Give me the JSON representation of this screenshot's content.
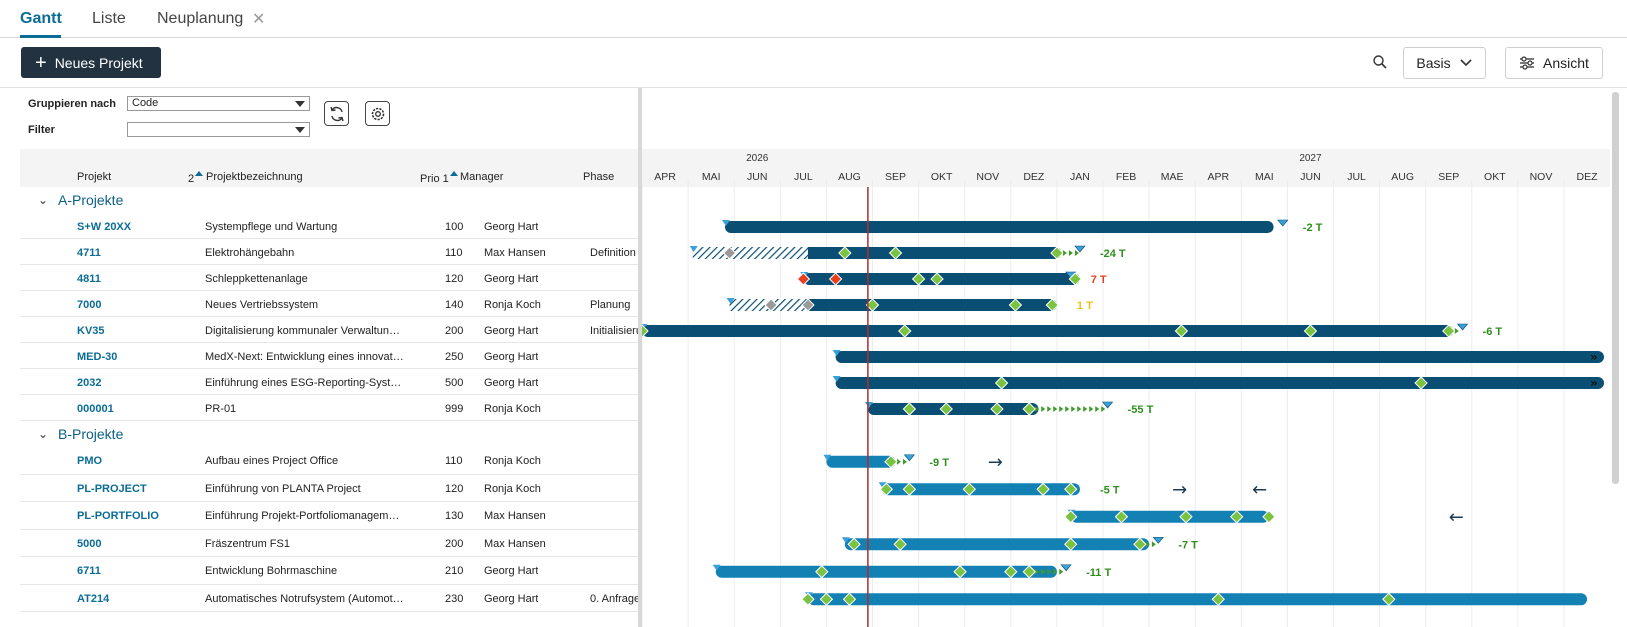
{
  "tabs": [
    {
      "label": "Gantt",
      "active": true
    },
    {
      "label": "Liste",
      "active": false
    },
    {
      "label": "Neuplanung",
      "active": false,
      "closable": true
    }
  ],
  "toolbar": {
    "new_project_label": "Neues Projekt",
    "basis_label": "Basis",
    "view_label": "Ansicht"
  },
  "filters": {
    "group_by_label": "Gruppieren nach",
    "group_by_value": "Code",
    "filter_label": "Filter",
    "filter_value": ""
  },
  "columns": {
    "project": "Projekt",
    "sort2": "2",
    "name": "Projektbezeichnung",
    "prio": "Prio 1",
    "manager": "Manager",
    "phase": "Phase"
  },
  "timeline": {
    "years": [
      "2026",
      "2027"
    ],
    "months": [
      "APR",
      "MAI",
      "JUN",
      "JUL",
      "AUG",
      "SEP",
      "OKT",
      "NOV",
      "DEZ",
      "JAN",
      "FEB",
      "MAE",
      "APR",
      "MAI",
      "JUN",
      "JUL",
      "AUG",
      "SEP",
      "OKT",
      "NOV",
      "DEZ"
    ],
    "today_month": 4.9
  },
  "colors": {
    "bar_a": "#0a4f73",
    "bar_b": "#1381b4",
    "milestone": "#79c341",
    "milestone_red": "#e6401f",
    "milestone_grey": "#9a9a9a",
    "today_line": "#b02c2c",
    "accent": "#0b6d96"
  },
  "groups": [
    {
      "name": "A-Projekte",
      "rows": [
        {
          "code": "S+W 20XX",
          "name": "Systempflege und Wartung",
          "prio": "100",
          "manager": "Georg Hart",
          "phase": "",
          "bar": [
            1.8,
            13.7
          ],
          "hatch": null,
          "milestones": [],
          "end_marker": 13.9,
          "label": "-2 T",
          "label_color": "#2f8f1d",
          "arrow": ""
        },
        {
          "code": "4711",
          "name": "Elektrohängebahn",
          "prio": "110",
          "manager": "Max Hansen",
          "phase": "Definition",
          "bar": [
            1.1,
            9.1
          ],
          "hatch": [
            1.1,
            3.6
          ],
          "milestones": [
            [
              1.9,
              "g"
            ],
            [
              4.4,
              "m"
            ],
            [
              5.5,
              "m"
            ],
            [
              9.0,
              "m"
            ]
          ],
          "end_marker": 9.5,
          "label": "-24 T",
          "label_color": "#2f8f1d",
          "arrow": ""
        },
        {
          "code": "4811",
          "name": "Schleppkettenanlage",
          "prio": "120",
          "manager": "Georg Hart",
          "phase": "",
          "bar": [
            3.5,
            9.5
          ],
          "hatch": null,
          "milestones": [
            [
              3.5,
              "r"
            ],
            [
              4.2,
              "r"
            ],
            [
              6.0,
              "m"
            ],
            [
              6.4,
              "m"
            ],
            [
              9.4,
              "m"
            ]
          ],
          "end_marker": 9.3,
          "label": "7 T",
          "label_color": "#e6401f",
          "arrow": ""
        },
        {
          "code": "7000",
          "name": "Neues Vertriebssystem",
          "prio": "140",
          "manager": "Ronja Koch",
          "phase": "Planung",
          "bar": [
            1.9,
            9.0
          ],
          "hatch": [
            1.9,
            3.6
          ],
          "milestones": [
            [
              2.8,
              "g"
            ],
            [
              3.6,
              "g"
            ],
            [
              5.0,
              "m"
            ],
            [
              8.1,
              "m"
            ],
            [
              8.9,
              "m"
            ]
          ],
          "end_marker": null,
          "label": "1 T",
          "label_color": "#e8c21c",
          "arrow": ""
        },
        {
          "code": "KV35",
          "name": "Digitalisierung kommunaler Verwaltun…",
          "prio": "200",
          "manager": "Georg Hart",
          "phase": "Initialisieru",
          "bar": [
            0.0,
            17.6
          ],
          "hatch": null,
          "milestones": [
            [
              0.0,
              "m"
            ],
            [
              5.7,
              "m"
            ],
            [
              11.7,
              "m"
            ],
            [
              14.5,
              "m"
            ],
            [
              17.5,
              "m"
            ]
          ],
          "end_marker": 17.8,
          "label": "-6 T",
          "label_color": "#2f8f1d",
          "arrow": ""
        },
        {
          "code": "MED-30",
          "name": "MedX-Next: Entwicklung eines innovat…",
          "prio": "250",
          "manager": "Georg Hart",
          "phase": "",
          "bar": [
            4.2,
            21.0
          ],
          "hatch": null,
          "milestones": [],
          "end_marker": null,
          "label": "",
          "label_color": "#2f8f1d",
          "arrow": "",
          "overflow": true
        },
        {
          "code": "2032",
          "name": "Einführung eines ESG-Reporting-Syste…",
          "prio": "500",
          "manager": "Georg Hart",
          "phase": "",
          "bar": [
            4.2,
            21.0
          ],
          "hatch": null,
          "milestones": [
            [
              7.8,
              "m"
            ],
            [
              16.9,
              "m"
            ]
          ],
          "end_marker": null,
          "label": "",
          "label_color": "#2f8f1d",
          "arrow": "",
          "overflow": true
        },
        {
          "code": "000001",
          "name": "PR-01",
          "prio": "999",
          "manager": "Ronja Koch",
          "phase": "",
          "bar": [
            4.9,
            8.6
          ],
          "hatch": null,
          "milestones": [
            [
              5.8,
              "m"
            ],
            [
              6.6,
              "m"
            ],
            [
              7.7,
              "m"
            ],
            [
              8.4,
              "m"
            ]
          ],
          "end_marker": 10.1,
          "label": "-55 T",
          "label_color": "#2f8f1d",
          "arrow": ""
        }
      ]
    },
    {
      "name": "B-Projekte",
      "rows": [
        {
          "code": "PMO",
          "name": "Aufbau eines Project Office",
          "prio": "110",
          "manager": "Ronja Koch",
          "phase": "",
          "bar": [
            4.0,
            5.5
          ],
          "hatch": null,
          "milestones": [
            [
              5.4,
              "m"
            ]
          ],
          "end_marker": 5.8,
          "label": "-9 T",
          "label_color": "#2f8f1d",
          "arrow": "→",
          "arrow_pos": 7.5
        },
        {
          "code": "PL-PROJECT",
          "name": "Einführung von PLANTA Project",
          "prio": "120",
          "manager": "Ronja Koch",
          "phase": "",
          "bar": [
            5.2,
            9.5
          ],
          "hatch": null,
          "milestones": [
            [
              5.3,
              "m"
            ],
            [
              5.8,
              "m"
            ],
            [
              7.1,
              "m"
            ],
            [
              8.7,
              "m"
            ],
            [
              9.3,
              "m"
            ]
          ],
          "end_marker": null,
          "label": "-5 T",
          "label_color": "#2f8f1d",
          "arrow": "→ ←",
          "arrow_pos": 11.5
        },
        {
          "code": "PL-PORTFOLIO",
          "name": "Einführung Projekt-Portfoliomanagem…",
          "prio": "130",
          "manager": "Max Hansen",
          "phase": "",
          "bar": [
            9.3,
            13.6
          ],
          "hatch": null,
          "milestones": [
            [
              9.3,
              "m"
            ],
            [
              10.4,
              "m"
            ],
            [
              11.8,
              "m"
            ],
            [
              12.9,
              "m"
            ],
            [
              13.6,
              "m"
            ]
          ],
          "end_marker": null,
          "label": "",
          "label_color": "#2f8f1d",
          "arrow": "←",
          "arrow_pos": 17.5
        },
        {
          "code": "5000",
          "name": "Fräszentrum FS1",
          "prio": "200",
          "manager": "Max Hansen",
          "phase": "",
          "bar": [
            4.4,
            11.0
          ],
          "hatch": null,
          "milestones": [
            [
              4.6,
              "m"
            ],
            [
              5.6,
              "m"
            ],
            [
              9.3,
              "m"
            ],
            [
              10.8,
              "m"
            ]
          ],
          "end_marker": 11.2,
          "label": "-7 T",
          "label_color": "#2f8f1d",
          "arrow": ""
        },
        {
          "code": "6711",
          "name": "Entwicklung Bohrmaschine",
          "prio": "210",
          "manager": "Georg Hart",
          "phase": "",
          "bar": [
            1.6,
            9.0
          ],
          "hatch": null,
          "milestones": [
            [
              3.9,
              "m"
            ],
            [
              6.9,
              "m"
            ],
            [
              8.0,
              "m"
            ],
            [
              8.4,
              "m"
            ]
          ],
          "end_marker": 9.2,
          "label": "-11 T",
          "label_color": "#2f8f1d",
          "arrow": ""
        },
        {
          "code": "AT214",
          "name": "Automatisches Notrufsystem (Automot…",
          "prio": "230",
          "manager": "Georg Hart",
          "phase": "0. Anfrage",
          "bar": [
            3.6,
            20.5
          ],
          "hatch": null,
          "milestones": [
            [
              3.6,
              "m"
            ],
            [
              4.0,
              "m"
            ],
            [
              4.5,
              "m"
            ],
            [
              12.5,
              "m"
            ],
            [
              16.2,
              "m"
            ]
          ],
          "end_marker": null,
          "label": "",
          "label_color": "#2f8f1d",
          "arrow": ""
        }
      ]
    }
  ]
}
